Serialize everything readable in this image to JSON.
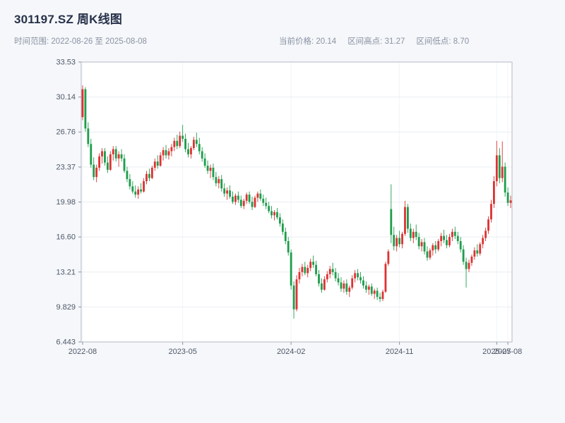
{
  "header": {
    "title": "301197.SZ 周K线图",
    "time_range_label": "时间范围:",
    "time_range_value": "2022-08-26 至 2025-08-08"
  },
  "stats": [
    {
      "label": "当前价格:",
      "value": "20.14"
    },
    {
      "label": "区间高点:",
      "value": "31.27"
    },
    {
      "label": "区间低点:",
      "value": "8.70"
    }
  ],
  "chart_data": {
    "type": "candlestick",
    "title": "301197.SZ 周K线图",
    "frequency": "weekly",
    "ylim": [
      6.443,
      33.53
    ],
    "grid": true,
    "plot_bg": "#ffffff",
    "up_color": "#dd3333",
    "down_color": "#1f9d4d",
    "grid_color": "#e9edf2",
    "vgrid_color": "#f1f4f8",
    "spine_color": "#b4bac5",
    "tick_color": "#8b93a2",
    "label_color": "#4f5868",
    "y_ticks": [
      {
        "value": 33.53,
        "label": "33.53"
      },
      {
        "value": 30.14,
        "label": "30.14"
      },
      {
        "value": 26.76,
        "label": "26.76"
      },
      {
        "value": 23.37,
        "label": "23.37"
      },
      {
        "value": 19.98,
        "label": "19.98"
      },
      {
        "value": 16.6,
        "label": "16.60"
      },
      {
        "value": 13.21,
        "label": "13.21"
      },
      {
        "value": 9.829,
        "label": "9.829"
      },
      {
        "value": 6.443,
        "label": "6.443"
      }
    ],
    "x_ticks": [
      "2022-08",
      "2023-05",
      "2024-02",
      "2024-11",
      "2025-07",
      "2025-08"
    ],
    "candles": [
      [
        "2022-08-26",
        28.2,
        31.27,
        27.9,
        30.9
      ],
      [
        "2022-09-02",
        30.9,
        31.1,
        26.8,
        27.1
      ],
      [
        "2022-09-09",
        27.1,
        27.7,
        25.3,
        25.6
      ],
      [
        "2022-09-16",
        25.6,
        26.1,
        23.3,
        23.6
      ],
      [
        "2022-09-23",
        23.6,
        24.3,
        22.1,
        22.4
      ],
      [
        "2022-09-30",
        22.4,
        23.6,
        21.9,
        23.3
      ],
      [
        "2022-10-07",
        23.3,
        24.7,
        23.0,
        24.4
      ],
      [
        "2022-10-14",
        24.4,
        25.2,
        23.7,
        24.9
      ],
      [
        "2022-10-21",
        24.9,
        25.2,
        23.5,
        23.8
      ],
      [
        "2022-10-28",
        23.8,
        24.4,
        22.8,
        23.1
      ],
      [
        "2022-11-04",
        23.1,
        24.9,
        23.0,
        24.6
      ],
      [
        "2022-11-11",
        24.6,
        25.4,
        24.0,
        25.1
      ],
      [
        "2022-11-18",
        25.1,
        25.4,
        23.9,
        24.2
      ],
      [
        "2022-11-25",
        24.2,
        24.9,
        23.4,
        24.6
      ],
      [
        "2022-12-02",
        24.6,
        25.1,
        23.9,
        24.2
      ],
      [
        "2022-12-09",
        24.2,
        24.6,
        22.8,
        23.0
      ],
      [
        "2022-12-16",
        23.0,
        23.4,
        21.9,
        22.2
      ],
      [
        "2022-12-23",
        22.2,
        22.7,
        21.2,
        21.5
      ],
      [
        "2022-12-30",
        21.5,
        22.0,
        20.8,
        21.0
      ],
      [
        "2023-01-06",
        21.0,
        21.6,
        20.4,
        20.7
      ],
      [
        "2023-01-13",
        20.7,
        21.5,
        20.3,
        21.2
      ],
      [
        "2023-01-20",
        21.2,
        21.8,
        20.8,
        21.0
      ],
      [
        "2023-01-27",
        21.0,
        22.3,
        20.9,
        22.0
      ],
      [
        "2023-02-03",
        22.0,
        23.0,
        21.7,
        22.7
      ],
      [
        "2023-02-10",
        22.7,
        23.2,
        22.0,
        22.3
      ],
      [
        "2023-02-17",
        22.3,
        23.5,
        22.2,
        23.3
      ],
      [
        "2023-02-24",
        23.3,
        24.2,
        23.0,
        23.9
      ],
      [
        "2023-03-03",
        23.9,
        24.5,
        23.2,
        23.5
      ],
      [
        "2023-03-10",
        23.5,
        24.8,
        23.4,
        24.5
      ],
      [
        "2023-03-17",
        24.5,
        25.3,
        24.0,
        25.0
      ],
      [
        "2023-03-24",
        25.0,
        25.5,
        24.2,
        24.5
      ],
      [
        "2023-03-31",
        24.5,
        25.2,
        24.1,
        24.9
      ],
      [
        "2023-04-07",
        24.9,
        25.6,
        24.4,
        25.3
      ],
      [
        "2023-04-14",
        25.3,
        26.2,
        24.9,
        25.9
      ],
      [
        "2023-04-21",
        25.9,
        26.5,
        25.1,
        25.4
      ],
      [
        "2023-04-28",
        25.4,
        26.8,
        25.2,
        26.4
      ],
      [
        "2023-05-05",
        26.4,
        27.45,
        25.8,
        26.1
      ],
      [
        "2023-05-12",
        26.1,
        26.6,
        24.8,
        25.1
      ],
      [
        "2023-05-19",
        25.1,
        25.7,
        24.3,
        24.6
      ],
      [
        "2023-05-26",
        24.6,
        25.4,
        24.2,
        25.2
      ],
      [
        "2023-06-02",
        25.2,
        26.3,
        25.0,
        26.0
      ],
      [
        "2023-06-09",
        26.0,
        26.7,
        25.3,
        25.6
      ],
      [
        "2023-06-16",
        25.6,
        26.2,
        24.6,
        24.9
      ],
      [
        "2023-06-23",
        24.9,
        25.3,
        23.9,
        24.2
      ],
      [
        "2023-06-30",
        24.2,
        24.7,
        23.3,
        23.5
      ],
      [
        "2023-07-07",
        23.5,
        24.0,
        22.7,
        23.0
      ],
      [
        "2023-07-14",
        23.0,
        23.6,
        22.3,
        23.3
      ],
      [
        "2023-07-21",
        23.3,
        23.7,
        22.1,
        22.4
      ],
      [
        "2023-07-28",
        22.4,
        22.9,
        21.5,
        21.8
      ],
      [
        "2023-08-04",
        21.8,
        22.5,
        21.3,
        22.2
      ],
      [
        "2023-08-11",
        22.2,
        22.6,
        21.0,
        21.3
      ],
      [
        "2023-08-18",
        21.3,
        21.8,
        20.5,
        20.8
      ],
      [
        "2023-08-25",
        20.8,
        21.4,
        20.2,
        21.1
      ],
      [
        "2023-09-01",
        21.1,
        21.6,
        20.3,
        20.5
      ],
      [
        "2023-09-08",
        20.5,
        21.0,
        19.8,
        20.0
      ],
      [
        "2023-09-15",
        20.0,
        20.8,
        19.7,
        20.6
      ],
      [
        "2023-09-22",
        20.6,
        21.0,
        19.9,
        20.2
      ],
      [
        "2023-09-29",
        20.2,
        20.6,
        19.4,
        19.6
      ],
      [
        "2023-10-06",
        19.6,
        20.3,
        19.3,
        20.1
      ],
      [
        "2023-10-13",
        20.1,
        20.9,
        19.8,
        20.7
      ],
      [
        "2023-10-20",
        20.7,
        21.0,
        19.8,
        20.0
      ],
      [
        "2023-10-27",
        20.0,
        20.5,
        19.2,
        19.5
      ],
      [
        "2023-11-03",
        19.5,
        20.6,
        19.4,
        20.4
      ],
      [
        "2023-11-10",
        20.4,
        21.0,
        20.0,
        20.8
      ],
      [
        "2023-11-17",
        20.8,
        21.2,
        20.1,
        20.3
      ],
      [
        "2023-11-24",
        20.3,
        20.7,
        19.6,
        19.9
      ],
      [
        "2023-12-01",
        19.9,
        20.4,
        19.3,
        19.6
      ],
      [
        "2023-12-08",
        19.6,
        20.0,
        18.9,
        19.1
      ],
      [
        "2023-12-15",
        19.1,
        19.6,
        18.4,
        18.7
      ],
      [
        "2023-12-22",
        18.7,
        19.2,
        18.2,
        19.0
      ],
      [
        "2023-12-29",
        19.0,
        19.4,
        18.3,
        18.5
      ],
      [
        "2024-01-05",
        18.5,
        18.9,
        17.6,
        17.9
      ],
      [
        "2024-01-12",
        17.9,
        18.3,
        16.8,
        17.1
      ],
      [
        "2024-01-19",
        17.1,
        17.5,
        15.9,
        16.2
      ],
      [
        "2024-01-26",
        16.2,
        16.6,
        14.8,
        15.1
      ],
      [
        "2024-02-02",
        15.1,
        15.4,
        11.5,
        11.9
      ],
      [
        "2024-02-09",
        11.9,
        12.3,
        8.7,
        9.6
      ],
      [
        "2024-02-16",
        9.6,
        12.9,
        9.4,
        12.5
      ],
      [
        "2024-02-23",
        12.5,
        13.6,
        12.1,
        13.2
      ],
      [
        "2024-03-01",
        13.2,
        14.0,
        12.8,
        13.7
      ],
      [
        "2024-03-08",
        13.7,
        14.2,
        12.9,
        13.1
      ],
      [
        "2024-03-15",
        13.1,
        13.9,
        12.7,
        13.6
      ],
      [
        "2024-03-22",
        13.6,
        14.5,
        13.3,
        14.2
      ],
      [
        "2024-03-29",
        14.2,
        14.8,
        13.6,
        13.9
      ],
      [
        "2024-04-05",
        13.9,
        14.3,
        12.8,
        13.0
      ],
      [
        "2024-04-12",
        13.0,
        13.4,
        11.8,
        12.1
      ],
      [
        "2024-04-19",
        12.1,
        12.6,
        11.2,
        11.5
      ],
      [
        "2024-04-26",
        11.5,
        12.8,
        11.4,
        12.5
      ],
      [
        "2024-05-03",
        12.5,
        13.3,
        12.2,
        13.0
      ],
      [
        "2024-05-10",
        13.0,
        13.8,
        12.6,
        13.5
      ],
      [
        "2024-05-17",
        13.5,
        14.1,
        12.9,
        13.2
      ],
      [
        "2024-05-24",
        13.2,
        13.6,
        12.3,
        12.6
      ],
      [
        "2024-05-31",
        12.6,
        13.1,
        11.9,
        12.2
      ],
      [
        "2024-06-07",
        12.2,
        12.7,
        11.3,
        11.6
      ],
      [
        "2024-06-14",
        11.6,
        12.4,
        11.2,
        12.1
      ],
      [
        "2024-06-21",
        12.1,
        12.5,
        11.0,
        11.3
      ],
      [
        "2024-06-28",
        11.3,
        11.9,
        10.8,
        11.7
      ],
      [
        "2024-07-05",
        11.7,
        12.9,
        11.5,
        12.6
      ],
      [
        "2024-07-12",
        12.6,
        13.4,
        12.2,
        13.1
      ],
      [
        "2024-07-19",
        13.1,
        13.5,
        12.4,
        12.7
      ],
      [
        "2024-07-26",
        12.7,
        13.2,
        12.1,
        12.4
      ],
      [
        "2024-08-02",
        12.4,
        12.8,
        11.6,
        11.9
      ],
      [
        "2024-08-09",
        11.9,
        12.3,
        11.2,
        11.5
      ],
      [
        "2024-08-16",
        11.5,
        12.0,
        11.0,
        11.8
      ],
      [
        "2024-08-23",
        11.8,
        12.1,
        10.9,
        11.1
      ],
      [
        "2024-08-30",
        11.1,
        11.6,
        10.6,
        11.4
      ],
      [
        "2024-09-06",
        11.4,
        11.7,
        10.5,
        10.8
      ],
      [
        "2024-09-13",
        10.8,
        11.2,
        10.3,
        10.6
      ],
      [
        "2024-09-20",
        10.6,
        11.5,
        10.4,
        11.3
      ],
      [
        "2024-09-27",
        11.3,
        14.2,
        11.2,
        14.0
      ],
      [
        "2024-10-04",
        14.0,
        15.4,
        13.8,
        15.2
      ],
      [
        "2024-10-11",
        19.3,
        21.7,
        16.0,
        16.8
      ],
      [
        "2024-10-18",
        16.8,
        17.6,
        15.3,
        15.7
      ],
      [
        "2024-10-25",
        15.7,
        16.8,
        15.2,
        16.5
      ],
      [
        "2024-11-01",
        16.5,
        17.2,
        15.6,
        15.9
      ],
      [
        "2024-11-08",
        15.9,
        17.1,
        15.5,
        16.9
      ],
      [
        "2024-11-15",
        16.9,
        20.1,
        16.7,
        19.5
      ],
      [
        "2024-11-22",
        19.5,
        19.8,
        17.0,
        17.4
      ],
      [
        "2024-11-29",
        17.4,
        17.9,
        16.2,
        16.5
      ],
      [
        "2024-12-06",
        16.5,
        17.4,
        16.0,
        17.1
      ],
      [
        "2024-12-13",
        17.1,
        17.8,
        16.3,
        16.6
      ],
      [
        "2024-12-20",
        16.6,
        17.0,
        15.4,
        15.7
      ],
      [
        "2024-12-27",
        15.7,
        16.4,
        15.2,
        16.1
      ],
      [
        "2025-01-03",
        16.1,
        16.5,
        14.9,
        15.2
      ],
      [
        "2025-01-10",
        15.2,
        15.7,
        14.3,
        14.6
      ],
      [
        "2025-01-17",
        14.6,
        15.5,
        14.4,
        15.3
      ],
      [
        "2025-01-24",
        15.3,
        16.0,
        14.8,
        15.8
      ],
      [
        "2025-01-31",
        15.8,
        16.2,
        15.0,
        15.4
      ],
      [
        "2025-02-07",
        15.4,
        16.4,
        15.2,
        16.2
      ],
      [
        "2025-02-14",
        16.2,
        17.0,
        15.7,
        16.7
      ],
      [
        "2025-02-21",
        16.7,
        17.3,
        16.0,
        16.3
      ],
      [
        "2025-02-28",
        16.3,
        16.8,
        15.5,
        15.8
      ],
      [
        "2025-03-07",
        15.8,
        16.9,
        15.6,
        16.6
      ],
      [
        "2025-03-14",
        16.6,
        17.4,
        16.2,
        17.1
      ],
      [
        "2025-03-21",
        17.1,
        17.6,
        16.4,
        16.7
      ],
      [
        "2025-03-28",
        16.7,
        17.1,
        15.9,
        16.2
      ],
      [
        "2025-04-04",
        16.2,
        16.6,
        15.1,
        15.4
      ],
      [
        "2025-04-11",
        15.4,
        15.8,
        13.9,
        14.2
      ],
      [
        "2025-04-18",
        14.2,
        14.6,
        11.7,
        13.5
      ],
      [
        "2025-04-25",
        13.5,
        14.4,
        13.2,
        14.1
      ],
      [
        "2025-05-02",
        14.1,
        14.9,
        13.8,
        14.7
      ],
      [
        "2025-05-09",
        14.7,
        15.6,
        14.4,
        15.3
      ],
      [
        "2025-05-16",
        15.3,
        15.9,
        14.7,
        15.0
      ],
      [
        "2025-05-23",
        15.0,
        16.1,
        14.8,
        15.9
      ],
      [
        "2025-05-30",
        15.9,
        16.8,
        15.5,
        16.5
      ],
      [
        "2025-06-06",
        16.5,
        17.5,
        16.2,
        17.2
      ],
      [
        "2025-06-13",
        17.2,
        18.6,
        16.9,
        18.3
      ],
      [
        "2025-06-20",
        18.3,
        20.2,
        18.0,
        19.8
      ],
      [
        "2025-06-27",
        19.8,
        22.5,
        19.4,
        22.0
      ],
      [
        "2025-07-04",
        22.0,
        25.9,
        21.5,
        24.5
      ],
      [
        "2025-07-11",
        24.5,
        25.2,
        21.8,
        22.3
      ],
      [
        "2025-07-18",
        22.3,
        25.85,
        21.9,
        23.4
      ],
      [
        "2025-07-25",
        23.4,
        23.8,
        20.5,
        20.9
      ],
      [
        "2025-08-01",
        20.9,
        21.4,
        19.6,
        19.9
      ],
      [
        "2025-08-08",
        19.9,
        20.6,
        19.4,
        20.14
      ]
    ]
  }
}
